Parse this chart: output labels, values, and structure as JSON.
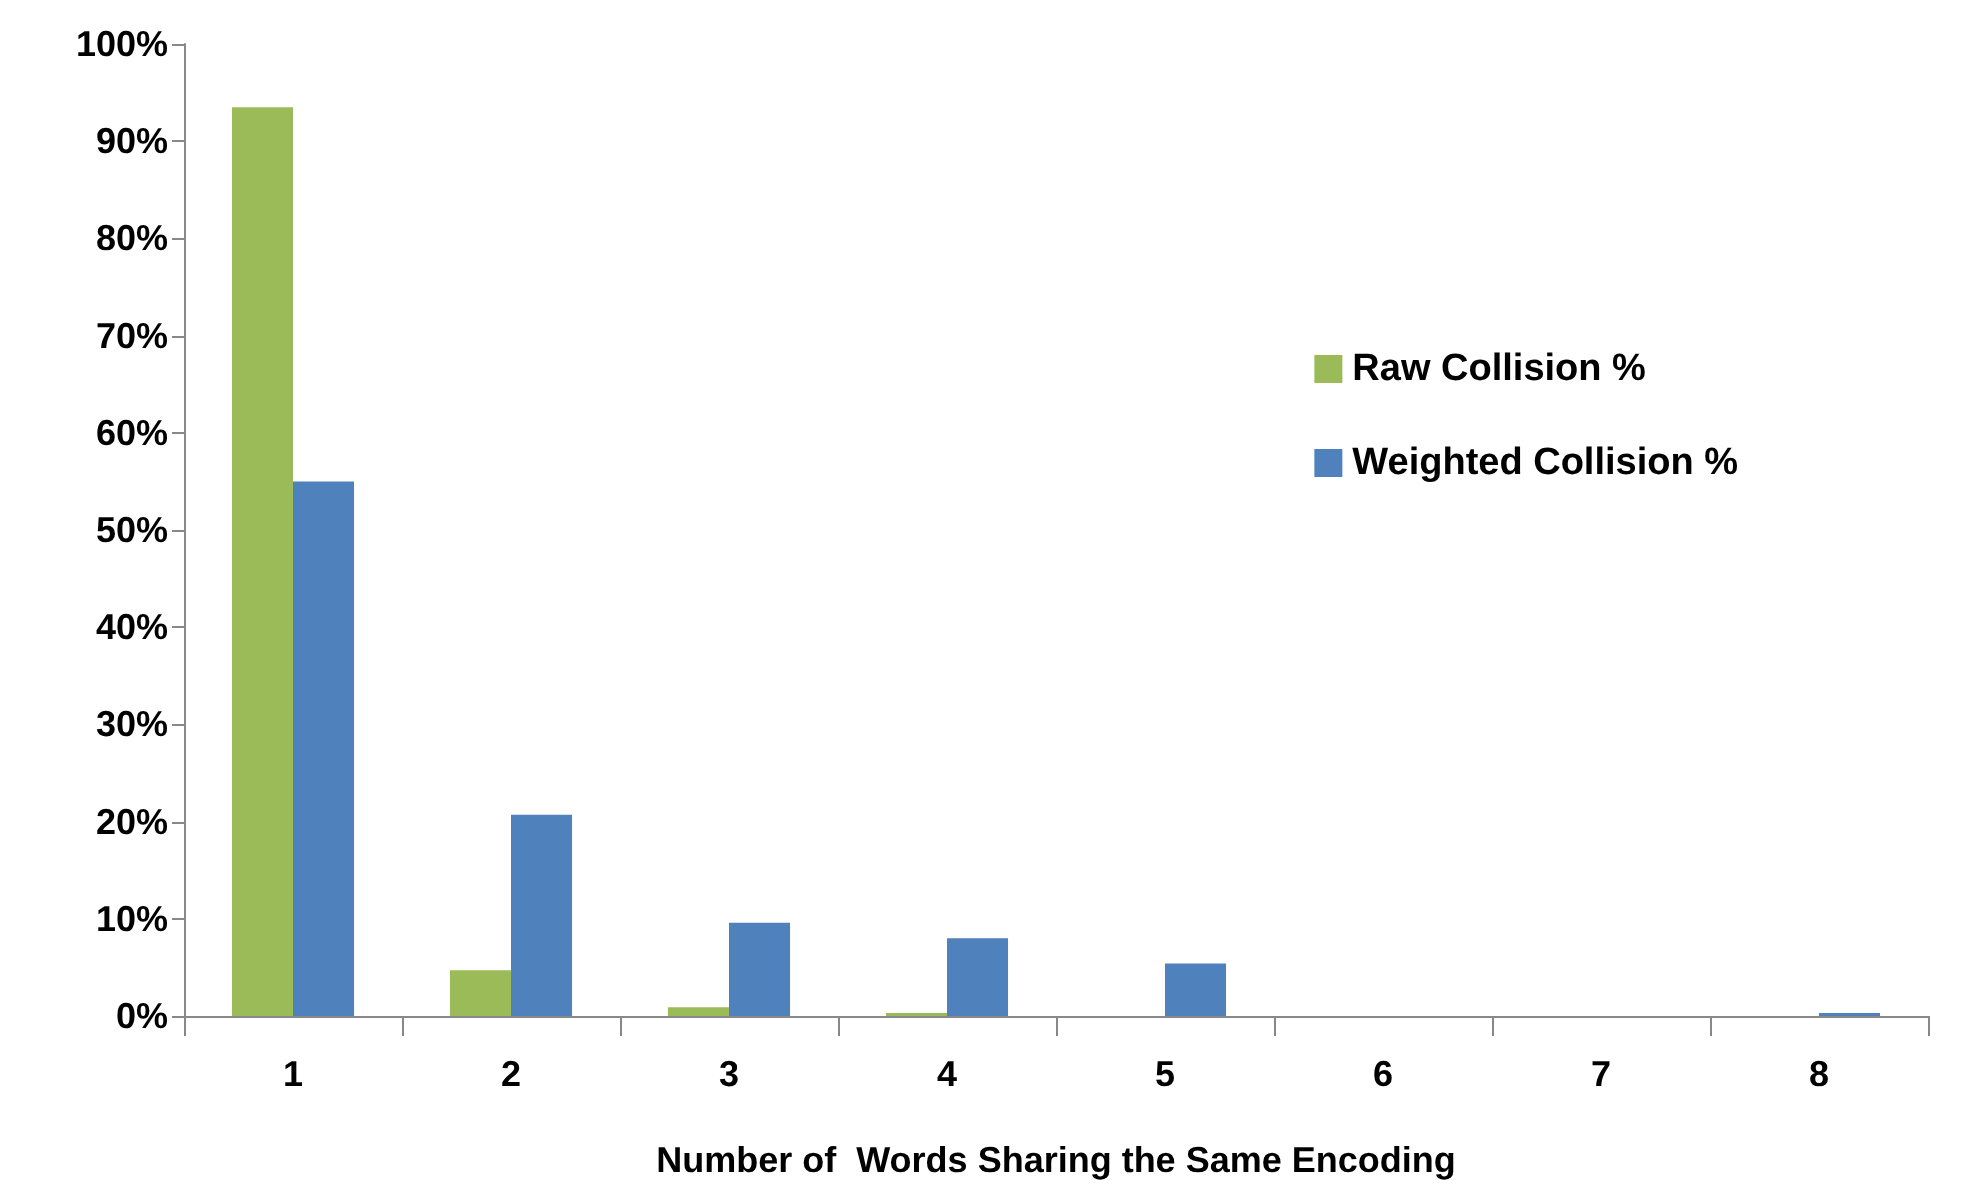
{
  "chart_data": {
    "type": "bar",
    "xlabel": "Number of  Words Sharing the Same Encoding",
    "categories": [
      "1",
      "2",
      "3",
      "4",
      "5",
      "6",
      "7",
      "8"
    ],
    "series": [
      {
        "name": "Raw Collision %",
        "color": "#9bbb59",
        "values": [
          93.5,
          4.7,
          0.9,
          0.3,
          0,
          0,
          0,
          0
        ]
      },
      {
        "name": "Weighted Collision %",
        "color": "#4f81bd",
        "values": [
          55,
          20.7,
          9.6,
          8,
          5.4,
          0,
          0,
          0.3
        ]
      }
    ],
    "ylim": [
      0,
      100
    ],
    "yticks": [
      {
        "value": 0,
        "label": "0%"
      },
      {
        "value": 10,
        "label": "10%"
      },
      {
        "value": 20,
        "label": "20%"
      },
      {
        "value": 30,
        "label": "30%"
      },
      {
        "value": 40,
        "label": "40%"
      },
      {
        "value": 50,
        "label": "50%"
      },
      {
        "value": 60,
        "label": "60%"
      },
      {
        "value": 70,
        "label": "70%"
      },
      {
        "value": 80,
        "label": "80%"
      },
      {
        "value": 90,
        "label": "90%"
      },
      {
        "value": 100,
        "label": "100%"
      }
    ],
    "grid": false,
    "legend": "right"
  }
}
